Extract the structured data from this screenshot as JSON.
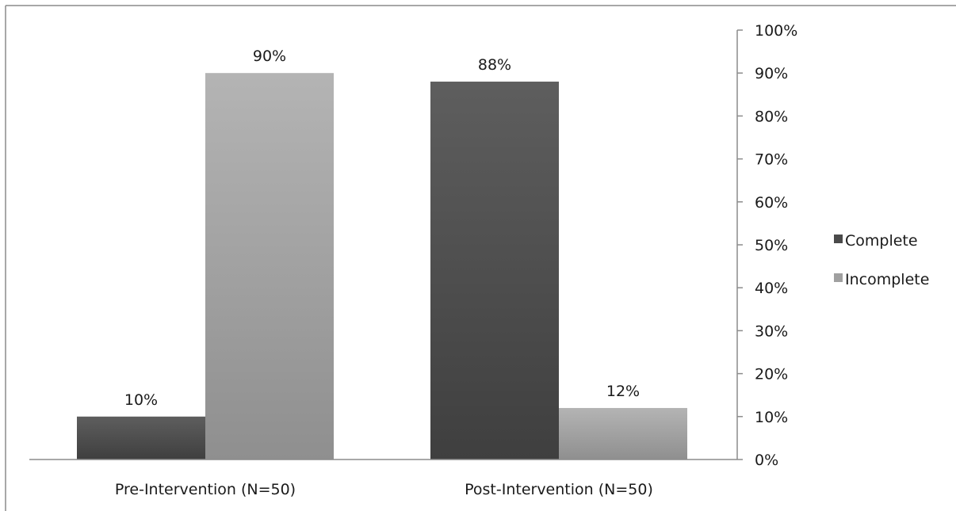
{
  "chart_data": {
    "type": "bar",
    "categories": [
      "Pre-Intervention (N=50)",
      "Post-Intervention (N=50)"
    ],
    "series": [
      {
        "name": "Complete",
        "values": [
          10,
          88
        ],
        "labels": [
          "10%",
          "88%"
        ],
        "color_top": "#5e5e5e",
        "color_bottom": "#3f3f3f"
      },
      {
        "name": "Incomplete",
        "values": [
          90,
          12
        ],
        "labels": [
          "90%",
          "12%"
        ],
        "color_top": "#b4b4b4",
        "color_bottom": "#8f8f8f"
      }
    ],
    "title": "",
    "xlabel": "",
    "ylabel": "",
    "ylim": [
      0,
      100
    ],
    "y_ticks": [
      "0%",
      "10%",
      "20%",
      "30%",
      "40%",
      "50%",
      "60%",
      "70%",
      "80%",
      "90%",
      "100%"
    ],
    "y_axis_position": "right",
    "grid": false,
    "legend_position": "right",
    "legend_swatch_colors": [
      "#4a4a4a",
      "#a0a0a0"
    ]
  }
}
